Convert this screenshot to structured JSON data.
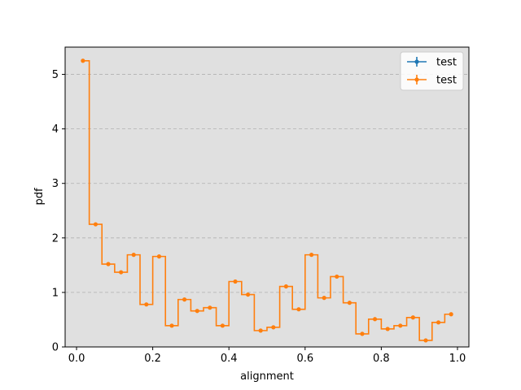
{
  "chart_data": {
    "type": "line",
    "xlabel": "alignment",
    "ylabel": "pdf",
    "xlim": [
      -0.03,
      1.03
    ],
    "ylim": [
      0,
      5.5
    ],
    "x_ticks": [
      "0.0",
      "0.2",
      "0.4",
      "0.6",
      "0.8",
      "1.0"
    ],
    "y_ticks": [
      "0",
      "1",
      "2",
      "3",
      "4",
      "5"
    ],
    "grid": "y-dashed",
    "legend_placement": "top-right",
    "background_color": "#e0e0e0",
    "series": [
      {
        "name": "test",
        "color": "#1f77b4",
        "x": [],
        "y": []
      },
      {
        "name": "test",
        "color": "#ff7f0e",
        "x": [
          0.0167,
          0.05,
          0.0833,
          0.1167,
          0.15,
          0.1833,
          0.2167,
          0.25,
          0.2833,
          0.3167,
          0.35,
          0.3833,
          0.4167,
          0.45,
          0.4833,
          0.5167,
          0.55,
          0.5833,
          0.6167,
          0.65,
          0.6833,
          0.7167,
          0.75,
          0.7833,
          0.8167,
          0.85,
          0.8833,
          0.9167,
          0.95,
          0.9833
        ],
        "y": [
          5.25,
          2.25,
          1.52,
          1.37,
          1.69,
          0.78,
          1.66,
          0.39,
          0.87,
          0.66,
          0.72,
          0.39,
          1.2,
          0.96,
          0.3,
          0.36,
          1.11,
          0.69,
          1.69,
          0.9,
          1.29,
          0.81,
          0.24,
          0.51,
          0.33,
          0.39,
          0.54,
          0.12,
          0.45,
          0.6
        ]
      }
    ]
  }
}
